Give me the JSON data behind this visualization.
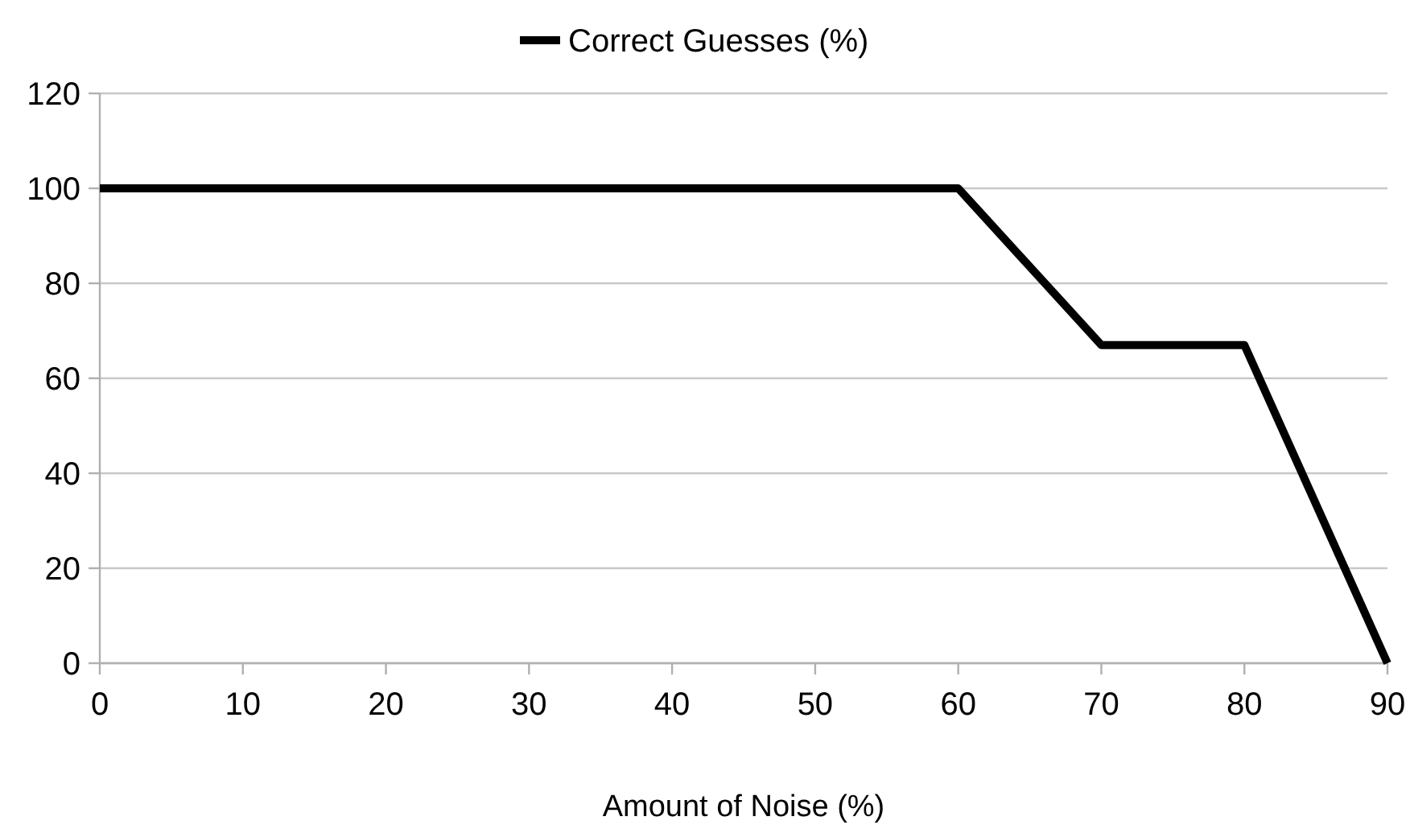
{
  "chart_data": {
    "type": "line",
    "xlabel": "Amount of Noise (%)",
    "x": [
      0,
      10,
      20,
      30,
      40,
      50,
      60,
      70,
      80,
      90
    ],
    "series": [
      {
        "name": "Correct Guesses (%)",
        "color": "#000000",
        "values": [
          100,
          100,
          100,
          100,
          100,
          100,
          100,
          67,
          67,
          0
        ]
      }
    ],
    "xlim": [
      0,
      90
    ],
    "xticks": [
      0,
      10,
      20,
      30,
      40,
      50,
      60,
      70,
      80,
      90
    ],
    "ylim": [
      0,
      120
    ],
    "yticks": [
      0,
      20,
      40,
      60,
      80,
      100,
      120
    ],
    "grid": "y",
    "legend": "top",
    "marker": "none",
    "line_style": "solid"
  }
}
